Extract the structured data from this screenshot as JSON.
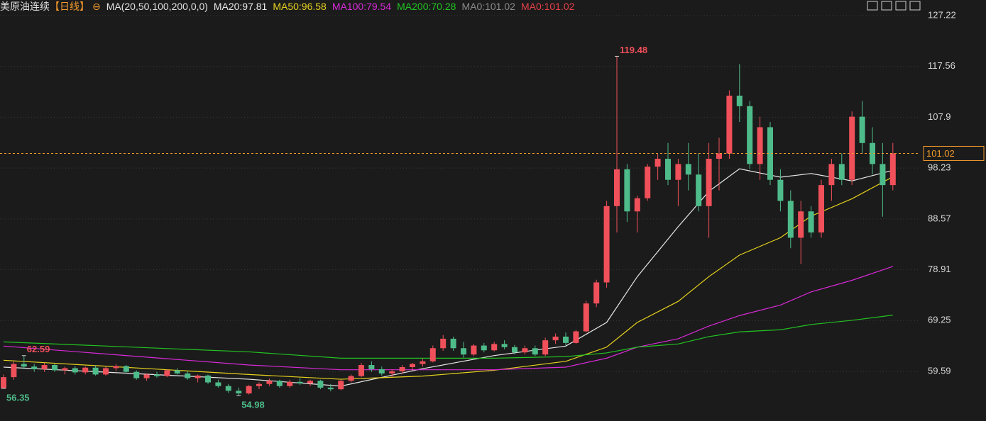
{
  "chart_data": {
    "type": "candlestick",
    "symbol": "美原油连续",
    "period": "【日线】",
    "indicator": "MA(20,50,100,200,0,0)",
    "legend": [
      {
        "label": "MA20:97.81",
        "color": "#e8e8e8"
      },
      {
        "label": "MA50:96.58",
        "color": "#e6d21e"
      },
      {
        "label": "MA100:79.54",
        "color": "#d82ad8"
      },
      {
        "label": "MA200:70.28",
        "color": "#22c322"
      },
      {
        "label": "MA0:101.02",
        "color": "#8a8a8a"
      },
      {
        "label": "MA0:101.02",
        "color": "#e8404a"
      }
    ],
    "ylim": [
      50.16,
      130.18
    ],
    "yticks": [
      59.59,
      69.25,
      78.91,
      88.57,
      98.23,
      107.9,
      117.56,
      127.22
    ],
    "grid": true,
    "up_color": "#f0505a",
    "down_color": "#4ebc8a",
    "last_price": 101.02,
    "annotations": [
      {
        "x": 60,
        "y": 119.48,
        "color": "#f0505a"
      },
      {
        "x": 2,
        "y": 62.59,
        "color": "#f0505a"
      },
      {
        "x": 0,
        "y": 56.35,
        "color": "#4ebc8a"
      },
      {
        "x": 23,
        "y": 54.98,
        "color": "#4ebc8a"
      }
    ],
    "ohlc": [
      [
        56.4,
        59,
        56.35,
        58.5
      ],
      [
        58.5,
        61.5,
        58,
        61
      ],
      [
        61,
        62.59,
        60,
        60.5
      ],
      [
        60.5,
        61,
        59.5,
        60
      ],
      [
        60,
        61.2,
        59.5,
        60.8
      ],
      [
        60.8,
        61,
        59.5,
        59.8
      ],
      [
        59.8,
        60.5,
        59,
        60.2
      ],
      [
        60.2,
        60.6,
        59,
        59.4
      ],
      [
        59.4,
        60.5,
        59,
        60.3
      ],
      [
        60.3,
        60.8,
        58.8,
        59
      ],
      [
        59,
        60.5,
        58.8,
        60.2
      ],
      [
        60.2,
        61,
        59.6,
        60.6
      ],
      [
        60.6,
        60.8,
        59.2,
        59.5
      ],
      [
        59.5,
        59.8,
        58,
        58.3
      ],
      [
        58.3,
        59.2,
        57.8,
        59
      ],
      [
        59,
        59.5,
        58.4,
        58.7
      ],
      [
        58.7,
        60,
        58.5,
        59.8
      ],
      [
        59.8,
        60.2,
        59,
        59.2
      ],
      [
        59.2,
        59.6,
        58,
        58.3
      ],
      [
        58.3,
        59,
        57.5,
        58.8
      ],
      [
        58.8,
        59,
        57.2,
        57.5
      ],
      [
        57.5,
        58,
        56.5,
        56.8
      ],
      [
        56.8,
        57.2,
        55.5,
        55.9
      ],
      [
        55.9,
        56.5,
        54.98,
        55.4
      ],
      [
        55.4,
        57,
        55.2,
        56.8
      ],
      [
        56.8,
        57.5,
        56.2,
        57.2
      ],
      [
        57.2,
        58.2,
        56.8,
        57.8
      ],
      [
        57.8,
        58,
        56.5,
        56.8
      ],
      [
        56.8,
        58,
        56.5,
        57.6
      ],
      [
        57.6,
        58.3,
        57,
        57.3
      ],
      [
        57.3,
        58,
        56.8,
        57.8
      ],
      [
        57.8,
        58,
        56.2,
        56.5
      ],
      [
        56.5,
        57.2,
        55.8,
        56.2
      ],
      [
        56.2,
        58,
        56,
        57.8
      ],
      [
        57.8,
        59,
        57.5,
        58.7
      ],
      [
        58.7,
        61.2,
        58.5,
        60.8
      ],
      [
        60.8,
        61.5,
        59.5,
        60
      ],
      [
        60,
        60.5,
        58.8,
        59.2
      ],
      [
        59.2,
        60,
        58.5,
        59.6
      ],
      [
        59.6,
        60.8,
        59.2,
        60.4
      ],
      [
        60.4,
        61.2,
        59.8,
        61
      ],
      [
        61,
        62,
        60.5,
        61.5
      ],
      [
        61.5,
        64.5,
        61.3,
        64
      ],
      [
        64,
        66.5,
        63.5,
        65.8
      ],
      [
        65.8,
        66.2,
        63.5,
        64
      ],
      [
        64,
        65.2,
        62.2,
        62.8
      ],
      [
        62.8,
        64.8,
        62.5,
        64.5
      ],
      [
        64.5,
        65,
        63.2,
        63.6
      ],
      [
        63.6,
        65.2,
        63.4,
        64.8
      ],
      [
        64.8,
        65.5,
        63.8,
        64.2
      ],
      [
        64.2,
        64.6,
        62.8,
        63.2
      ],
      [
        63.2,
        64.5,
        62.8,
        64
      ],
      [
        64,
        64.5,
        62.5,
        62.8
      ],
      [
        62.8,
        66,
        62.5,
        65.5
      ],
      [
        65.5,
        66.8,
        64.8,
        66.2
      ],
      [
        66.2,
        67,
        64.5,
        65
      ],
      [
        65,
        67.5,
        64.8,
        67.2
      ],
      [
        67.2,
        73,
        67,
        72.5
      ],
      [
        72.5,
        77,
        71.8,
        76.5
      ],
      [
        76.5,
        92,
        75.5,
        91
      ],
      [
        91,
        119.48,
        86,
        98
      ],
      [
        98,
        99,
        88,
        90
      ],
      [
        90,
        93,
        86,
        92.5
      ],
      [
        92.5,
        99,
        92,
        98.5
      ],
      [
        98.5,
        101,
        96,
        100
      ],
      [
        100,
        103,
        95,
        96
      ],
      [
        96,
        100,
        91,
        99
      ],
      [
        99,
        103,
        94,
        97
      ],
      [
        97,
        101,
        90,
        91
      ],
      [
        91,
        103,
        85,
        100
      ],
      [
        100,
        104,
        94,
        101
      ],
      [
        101,
        113,
        100,
        112
      ],
      [
        112,
        118,
        107,
        110
      ],
      [
        110,
        111,
        98,
        99
      ],
      [
        99,
        108,
        96,
        106
      ],
      [
        106,
        107,
        95,
        96
      ],
      [
        96,
        98,
        90,
        92
      ],
      [
        92,
        94,
        83,
        85
      ],
      [
        85,
        92,
        80,
        90
      ],
      [
        90,
        91,
        85,
        86
      ],
      [
        86,
        96,
        85,
        95
      ],
      [
        95,
        100,
        92,
        99
      ],
      [
        99,
        101,
        95,
        96
      ],
      [
        96,
        109,
        95,
        108
      ],
      [
        108,
        111,
        101,
        103
      ],
      [
        103,
        106,
        97,
        99
      ],
      [
        99,
        103,
        89,
        95
      ],
      [
        95,
        103,
        94,
        101.02
      ]
    ],
    "ma_lines": [
      {
        "color": "#e8e8e8",
        "x": [
          0,
          24,
          33,
          41,
          48,
          55,
          59,
          62,
          66,
          69,
          72,
          76,
          79,
          83,
          87
        ],
        "values": [
          60.4,
          58.1,
          56.8,
          60.1,
          62.6,
          64.4,
          68.9,
          77.6,
          87.1,
          93.8,
          98.1,
          96.5,
          97.2,
          95.8,
          97.81
        ]
      },
      {
        "color": "#e6d21e",
        "x": [
          0,
          24,
          33,
          41,
          48,
          55,
          59,
          62,
          66,
          69,
          72,
          76,
          79,
          83,
          87
        ],
        "values": [
          61.7,
          59,
          58.1,
          58.7,
          59.8,
          61.5,
          64.2,
          68.9,
          72.9,
          77.6,
          81.7,
          85,
          89.1,
          92.4,
          96.58
        ]
      },
      {
        "color": "#d82ad8",
        "x": [
          0,
          24,
          33,
          41,
          48,
          55,
          59,
          62,
          66,
          69,
          72,
          76,
          79,
          83,
          87
        ],
        "values": [
          64.4,
          60.8,
          59.9,
          59.9,
          59.9,
          60.4,
          62.1,
          64.2,
          65.8,
          68.2,
          70.2,
          72.2,
          74.7,
          76.9,
          79.54
        ]
      },
      {
        "color": "#22c322",
        "x": [
          0,
          24,
          33,
          41,
          48,
          55,
          59,
          62,
          66,
          69,
          72,
          76,
          79,
          83,
          87
        ],
        "values": [
          65.2,
          63.3,
          62.1,
          62.1,
          62.1,
          62.4,
          63.1,
          64.2,
          64.8,
          66.2,
          67.1,
          67.5,
          68.5,
          69.3,
          70.28
        ]
      }
    ]
  }
}
